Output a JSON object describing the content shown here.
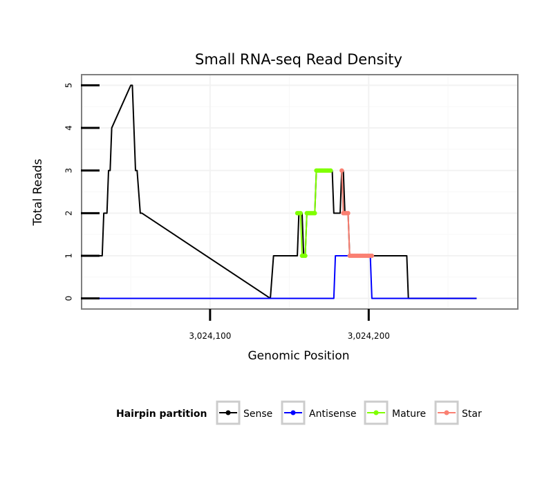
{
  "chart_data": {
    "type": "line",
    "title": "Small RNA-seq Read Density",
    "xlabel": "Genomic Position",
    "ylabel": "Total Reads",
    "xlim": [
      3024019,
      3024294
    ],
    "ylim": [
      -0.25,
      5.25
    ],
    "x_ticks": [
      3024100,
      3024200
    ],
    "x_tick_labels": [
      "3,024,100",
      "3,024,200"
    ],
    "y_ticks": [
      0,
      1,
      2,
      3,
      4,
      5
    ],
    "y_tick_labels": [
      "0",
      "1",
      "2",
      "3",
      "4",
      "5"
    ],
    "grid": true,
    "legend": {
      "title": "Hairpin partition",
      "position": "bottom",
      "entries": [
        {
          "name": "Sense",
          "color": "#000000"
        },
        {
          "name": "Antisense",
          "color": "#0000ff"
        },
        {
          "name": "Mature",
          "color": "#7fff00"
        },
        {
          "name": "Star",
          "color": "#fa8072"
        }
      ]
    },
    "series": [
      {
        "name": "Sense",
        "color": "#000000",
        "marker": false,
        "x": [
          3024026,
          3024032,
          3024033,
          3024035,
          3024036,
          3024037,
          3024038,
          3024050,
          3024051,
          3024053,
          3024054,
          3024056,
          3024057,
          3024138,
          3024140,
          3024155,
          3024156,
          3024158,
          3024159,
          3024160,
          3024161,
          3024166,
          3024167,
          3024177,
          3024178,
          3024182,
          3024183,
          3024184,
          3024185,
          3024187,
          3024188,
          3024202,
          3024203,
          3024224,
          3024225,
          3024268
        ],
        "y": [
          1,
          1,
          2,
          2,
          3,
          3,
          4,
          5,
          5,
          3,
          3,
          2,
          2,
          0,
          1,
          1,
          2,
          2,
          1,
          1,
          2,
          2,
          3,
          3,
          2,
          2,
          3,
          3,
          2,
          2,
          1,
          1,
          1,
          1,
          0,
          0
        ]
      },
      {
        "name": "Antisense",
        "color": "#0000ff",
        "marker": false,
        "x": [
          3024026,
          3024177,
          3024178,
          3024179,
          3024180,
          3024201,
          3024202,
          3024268
        ],
        "y": [
          0,
          0,
          0,
          1,
          1,
          1,
          0,
          0
        ]
      },
      {
        "name": "Mature",
        "color": "#7fff00",
        "marker": true,
        "x": [
          3024155,
          3024156,
          3024157,
          3024158,
          3024159,
          3024160,
          3024161,
          3024162,
          3024163,
          3024164,
          3024165,
          3024166,
          3024167,
          3024168,
          3024169,
          3024170,
          3024171,
          3024172,
          3024173,
          3024174,
          3024175,
          3024176
        ],
        "y": [
          2,
          2,
          2,
          1,
          1,
          1,
          2,
          2,
          2,
          2,
          2,
          2,
          3,
          3,
          3,
          3,
          3,
          3,
          3,
          3,
          3,
          3
        ]
      },
      {
        "name": "Star",
        "color": "#fa8072",
        "marker": true,
        "x": [
          3024183,
          3024184,
          3024185,
          3024186,
          3024187,
          3024188,
          3024189,
          3024190,
          3024191,
          3024192,
          3024193,
          3024194,
          3024195,
          3024196,
          3024197,
          3024198,
          3024199,
          3024200,
          3024201,
          3024202
        ],
        "y": [
          3,
          2,
          2,
          2,
          2,
          1,
          1,
          1,
          1,
          1,
          1,
          1,
          1,
          1,
          1,
          1,
          1,
          1,
          1,
          1
        ]
      }
    ]
  }
}
